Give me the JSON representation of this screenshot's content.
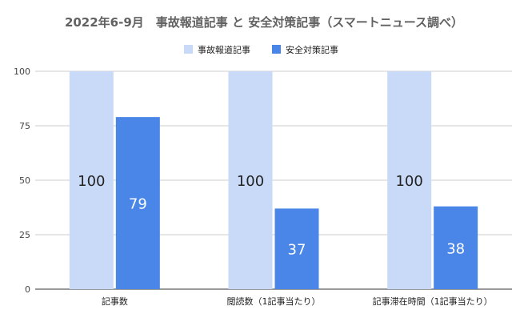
{
  "chart_data": {
    "type": "bar",
    "title": "2022年6-9月　事故報道記事 と 安全対策記事（スマートニュース調べ）",
    "categories": [
      "記事数",
      "閲読数（1記事当たり）",
      "記事滞在時間（1記事当たり）"
    ],
    "series": [
      {
        "name": "事故報道記事",
        "values": [
          100,
          100,
          100
        ],
        "color": "#c9daf8",
        "label_color": "#222222"
      },
      {
        "name": "安全対策記事",
        "values": [
          79,
          37,
          38
        ],
        "color": "#4a86e8",
        "label_color": "#ffffff"
      }
    ],
    "ylim": [
      0,
      100
    ],
    "yticks": [
      0,
      25,
      50,
      75,
      100
    ],
    "xlabel": "",
    "ylabel": "",
    "grid": true,
    "legend_position": "top-center",
    "show_data_labels": true
  }
}
